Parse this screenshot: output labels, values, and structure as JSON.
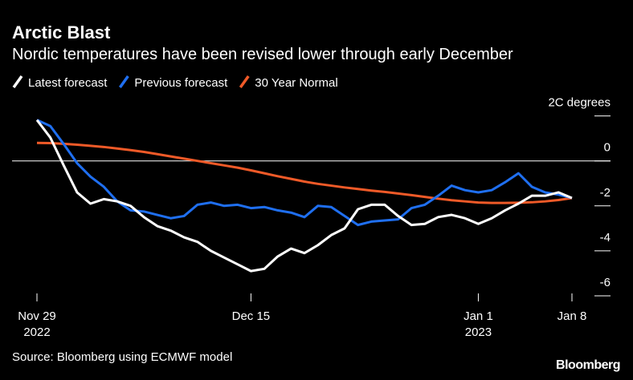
{
  "chart_data": {
    "type": "line",
    "title": "Arctic Blast",
    "subtitle": "Nordic temperatures have been revised lower through early December",
    "source": "Source: Bloomberg using ECMWF model",
    "brand": "Bloomberg",
    "x": [
      "2022-11-29",
      "2022-11-30",
      "2022-12-01",
      "2022-12-02",
      "2022-12-03",
      "2022-12-04",
      "2022-12-05",
      "2022-12-06",
      "2022-12-07",
      "2022-12-08",
      "2022-12-09",
      "2022-12-10",
      "2022-12-11",
      "2022-12-12",
      "2022-12-13",
      "2022-12-14",
      "2022-12-15",
      "2022-12-16",
      "2022-12-17",
      "2022-12-18",
      "2022-12-19",
      "2022-12-20",
      "2022-12-21",
      "2022-12-22",
      "2022-12-23",
      "2022-12-24",
      "2022-12-25",
      "2022-12-26",
      "2022-12-27",
      "2022-12-28",
      "2022-12-29",
      "2022-12-30",
      "2022-12-31",
      "2023-01-01",
      "2023-01-02",
      "2023-01-03",
      "2023-01-04",
      "2023-01-05",
      "2023-01-06",
      "2023-01-07",
      "2023-01-08"
    ],
    "xlim": [
      "2022-11-29",
      "2023-01-08"
    ],
    "xticks": [
      {
        "value": "2022-11-29",
        "label": "Nov 29",
        "year": "2022"
      },
      {
        "value": "2022-12-15",
        "label": "Dec 15"
      },
      {
        "value": "2023-01-01",
        "label": "Jan 1",
        "year": "2023"
      },
      {
        "value": "2023-01-08",
        "label": "Jan 8"
      }
    ],
    "ylim": [
      -6.2,
      2.2
    ],
    "yticks": [
      {
        "value": 2,
        "label": "2C degrees"
      },
      0,
      -2,
      -4,
      -6
    ],
    "zero_line": true,
    "series": [
      {
        "name": "Latest forecast",
        "color": "#ffffff",
        "values": [
          1.82,
          1.04,
          -0.2,
          -1.4,
          -1.9,
          -1.7,
          -1.8,
          -2.0,
          -2.5,
          -2.9,
          -3.1,
          -3.4,
          -3.6,
          -4.0,
          -4.3,
          -4.6,
          -4.9,
          -4.8,
          -4.25,
          -3.9,
          -4.1,
          -3.75,
          -3.3,
          -3.0,
          -2.15,
          -1.95,
          -1.95,
          -2.45,
          -2.85,
          -2.8,
          -2.5,
          -2.4,
          -2.55,
          -2.8,
          -2.55,
          -2.2,
          -1.9,
          -1.55,
          -1.55,
          -1.4,
          -1.65
        ]
      },
      {
        "name": "Previous forecast",
        "color": "#1f6ff0",
        "values": [
          1.82,
          1.55,
          0.75,
          -0.1,
          -0.7,
          -1.15,
          -1.8,
          -2.2,
          -2.25,
          -2.4,
          -2.55,
          -2.45,
          -1.95,
          -1.85,
          -2.0,
          -1.95,
          -2.1,
          -2.05,
          -2.2,
          -2.3,
          -2.5,
          -2.0,
          -2.05,
          -2.45,
          -2.85,
          -2.7,
          -2.65,
          -2.6,
          -2.1,
          -1.95,
          -1.55,
          -1.1,
          -1.3,
          -1.4,
          -1.3,
          -0.95,
          -0.55,
          -1.15,
          -1.4,
          -1.5,
          -1.65
        ]
      },
      {
        "name": "30 Year Normal",
        "color": "#f05a28",
        "values": [
          0.8,
          0.79,
          0.76,
          0.72,
          0.67,
          0.62,
          0.55,
          0.48,
          0.4,
          0.3,
          0.2,
          0.1,
          0,
          -0.1,
          -0.2,
          -0.3,
          -0.42,
          -0.55,
          -0.68,
          -0.8,
          -0.92,
          -1.02,
          -1.1,
          -1.18,
          -1.25,
          -1.32,
          -1.38,
          -1.45,
          -1.52,
          -1.6,
          -1.68,
          -1.75,
          -1.8,
          -1.85,
          -1.87,
          -1.87,
          -1.86,
          -1.84,
          -1.8,
          -1.74,
          -1.65
        ]
      }
    ]
  }
}
